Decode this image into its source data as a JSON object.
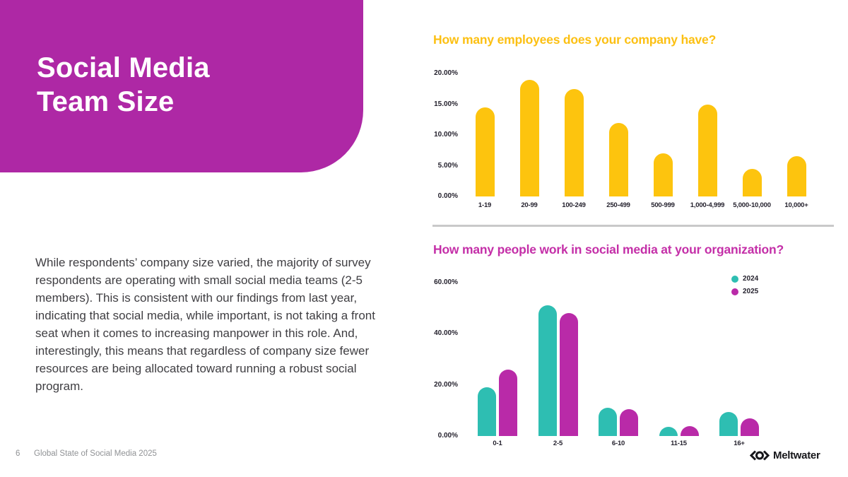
{
  "title_card": {
    "heading": "Social Media\nTeam Size",
    "bg_color": "#ae28a5"
  },
  "body_text": "While respondents’ company size varied, the majority of survey respondents are operating with small social media teams (2-5 members). This is consistent with our findings from last year, indicating that social media, while important, is not taking a front seat when it comes to increasing manpower in this role. And, interestingly, this means that regardless of company size fewer resources are being allocated toward running a robust social program.",
  "footer": {
    "page_number": "6",
    "report_title": "Global State of Social Media 2025"
  },
  "brand": {
    "logo_text": "Meltwater"
  },
  "colors": {
    "title_card_bg": "#ae28a5",
    "employees_bar_yellow": "#fdc40e",
    "employees_title_yellow": "#fcc013",
    "teal_2024": "#2ebeb2",
    "magenta_2025": "#b92aa8",
    "team_chart_title_pink": "#c42fa8",
    "divider_grey": "#c9c9ca",
    "axis_text": "#25222e",
    "footer_grey": "#909295"
  },
  "chart_data": [
    {
      "type": "bar",
      "title": "How many employees does your company have?",
      "title_color": "#fcc013",
      "categories": [
        "1-19",
        "20-99",
        "100-249",
        "250-499",
        "500-999",
        "1,000-4,999",
        "5,000-10,000",
        "10,000+"
      ],
      "values": [
        14.5,
        19.0,
        17.5,
        12.0,
        7.0,
        15.0,
        4.5,
        6.5
      ],
      "bar_color": "#fdc40e",
      "ylabel": "",
      "xlabel": "",
      "ylim": [
        0,
        20
      ],
      "y_tick_values": [
        0,
        5,
        10,
        15,
        20
      ],
      "y_tick_labels": [
        "0.00%",
        "5.00%",
        "10.00%",
        "15.00%",
        "20.00%"
      ],
      "grid": false,
      "legend_position": "none"
    },
    {
      "type": "bar",
      "title": "How many people work in social media at your organization?",
      "title_color": "#c42fa8",
      "categories": [
        "0-1",
        "2-5",
        "6-10",
        "11-15",
        "16+"
      ],
      "series": [
        {
          "name": "2024",
          "color": "#2ebeb2",
          "values": [
            19.0,
            51.0,
            11.0,
            3.5,
            9.5
          ]
        },
        {
          "name": "2025",
          "color": "#b92aa8",
          "values": [
            26.0,
            48.0,
            10.5,
            4.0,
            7.0
          ]
        }
      ],
      "ylabel": "",
      "xlabel": "",
      "ylim": [
        0,
        60
      ],
      "y_tick_values": [
        0,
        20,
        40,
        60
      ],
      "y_tick_labels": [
        "0.00%",
        "20.00%",
        "40.00%",
        "60.00%"
      ],
      "grid": false,
      "legend_position": "top-right"
    }
  ]
}
